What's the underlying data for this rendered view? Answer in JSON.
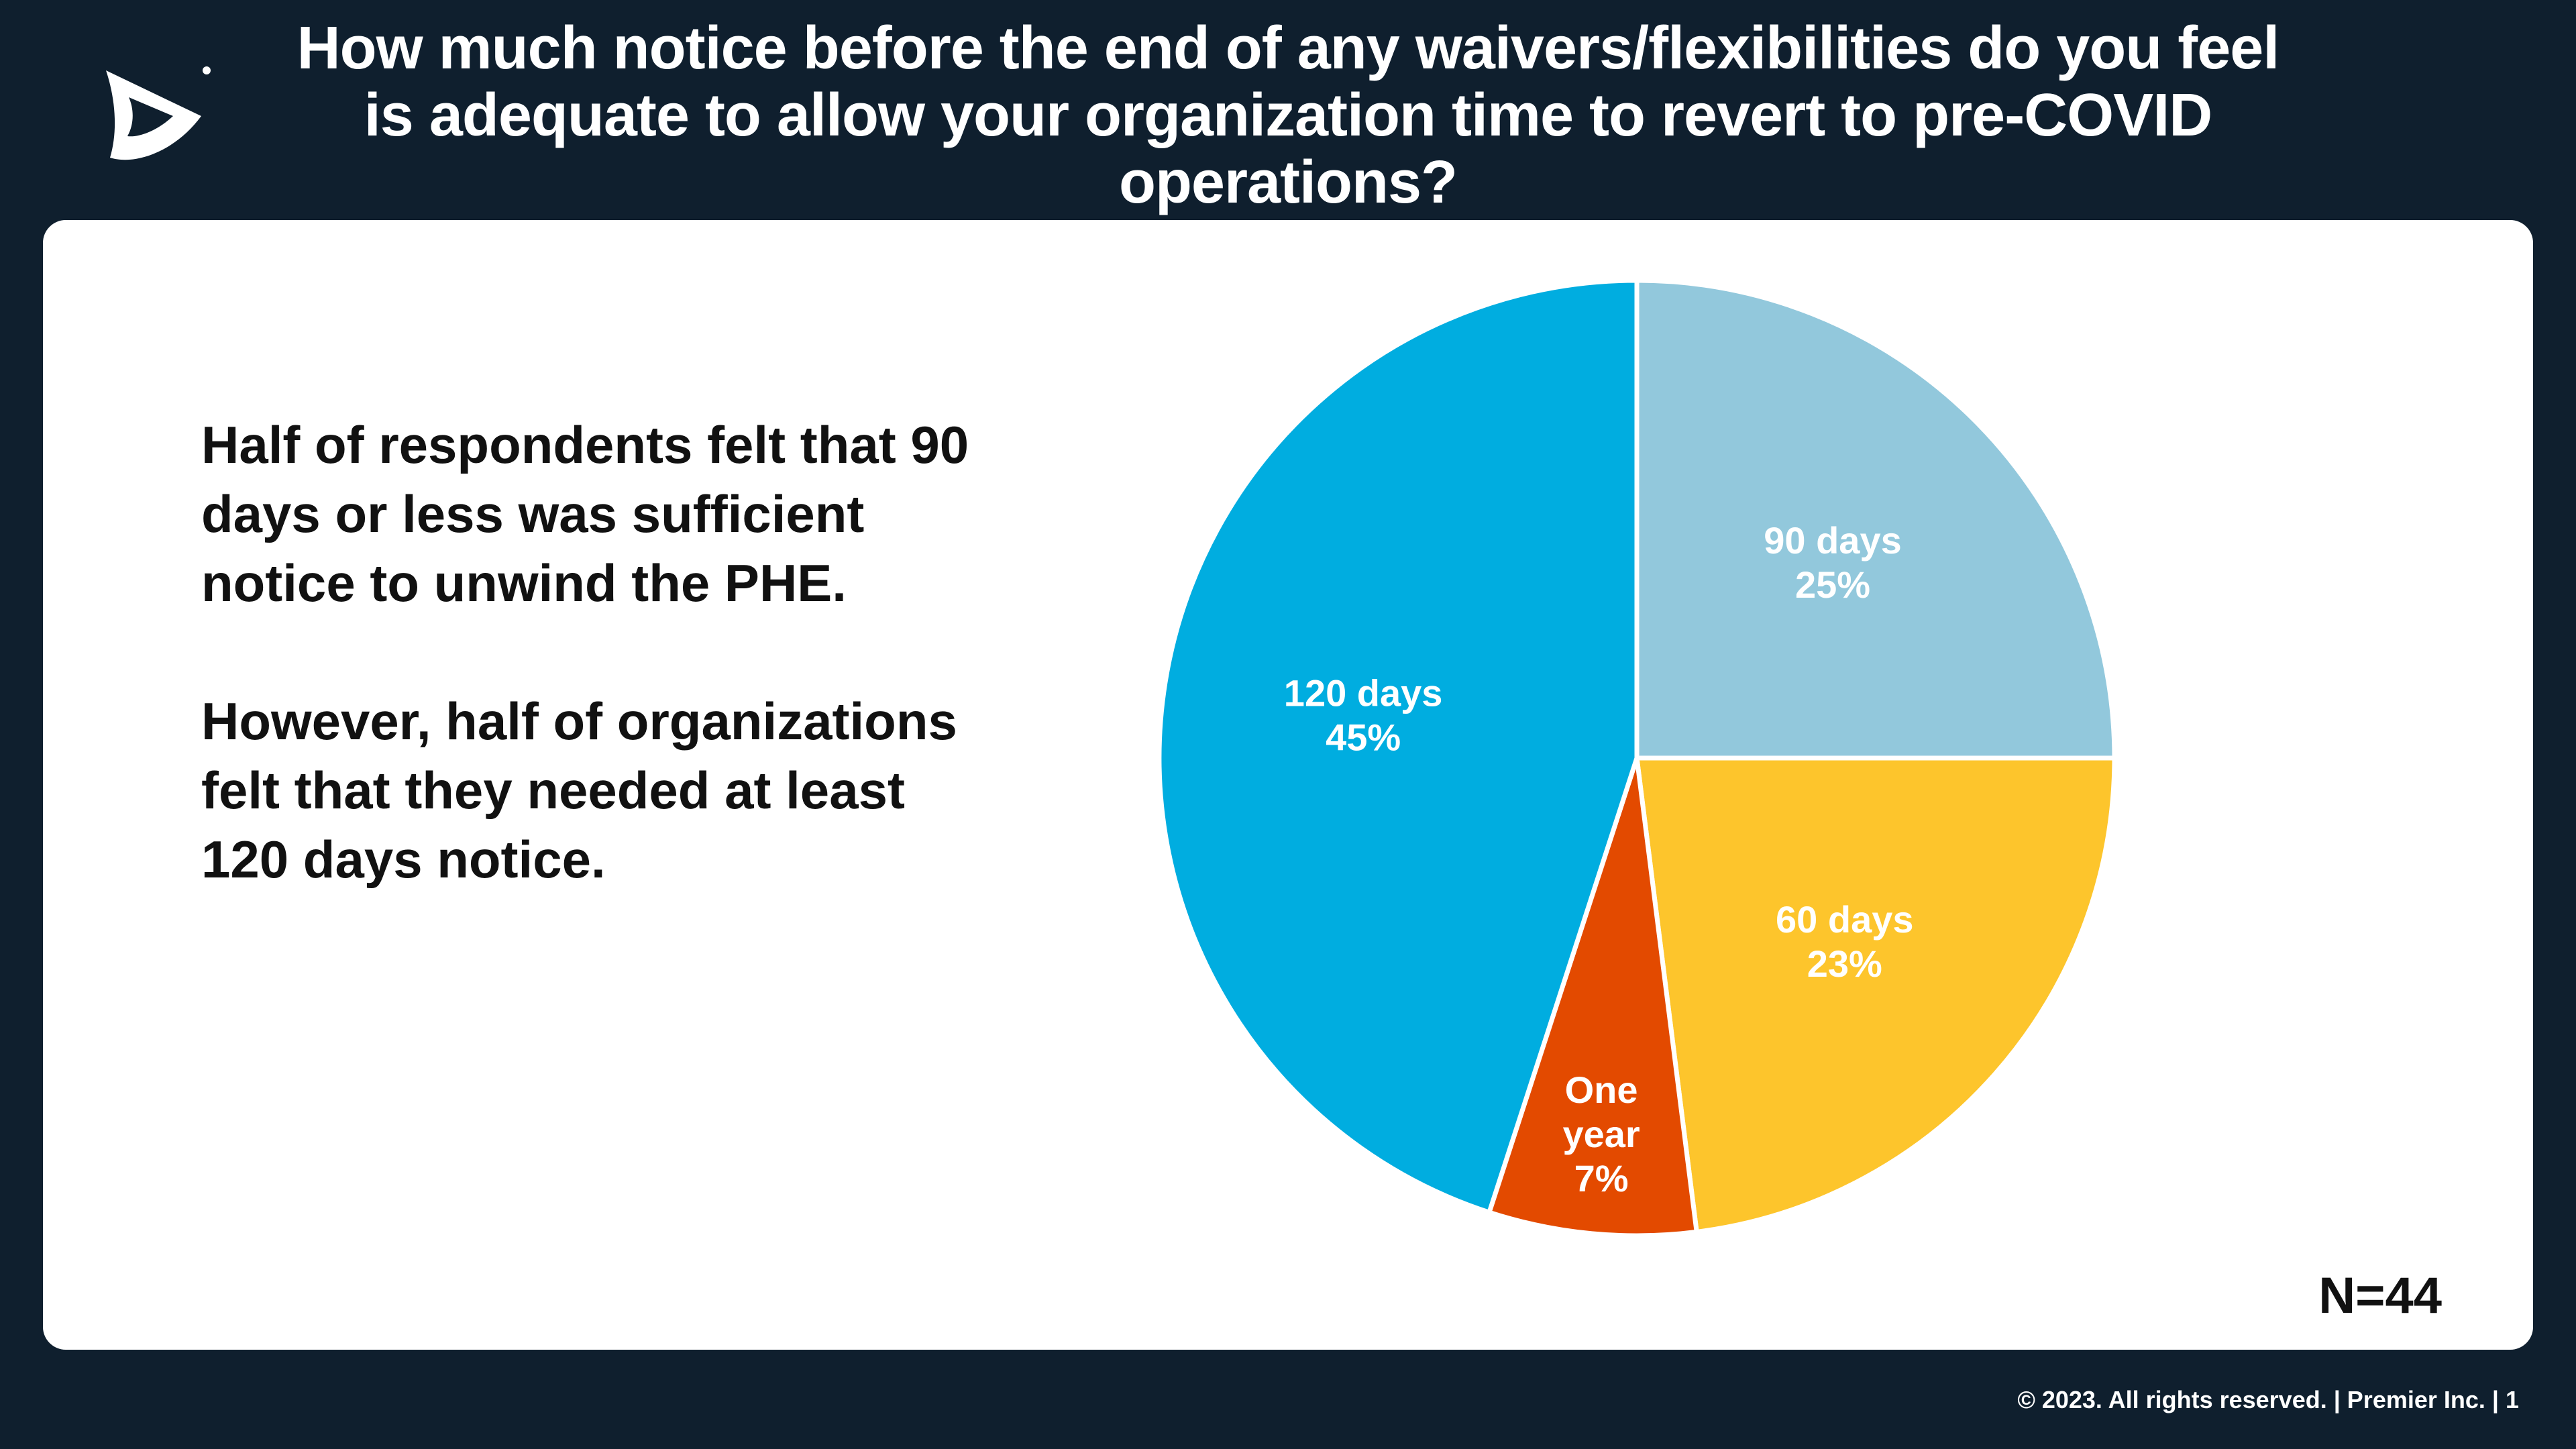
{
  "slide": {
    "title": "How much notice before the end of any waivers/flexibilities do you feel is adequate to allow your organization time to revert to pre-COVID operations?",
    "body": [
      "Half of respondents felt that 90 days or less was sufficient notice to unwind the PHE.",
      "However, half of organizations felt that they needed at least 120 days notice."
    ],
    "sample_size": "N=44",
    "footer": "© 2023. All rights reserved.  |  Premier Inc.  |  1",
    "logo_icon": "premier-logo-icon"
  },
  "colors": {
    "background": "#0f1f2e",
    "panel": "#ffffff"
  },
  "chart_data": {
    "type": "pie",
    "title": "How much notice before the end of any waivers/flexibilities do you feel is adequate to allow your organization time to revert to pre-COVID operations?",
    "start_angle_deg": 0,
    "direction": "clockwise",
    "slices": [
      {
        "label_lines": [
          "90 days"
        ],
        "percent_label": "25%",
        "value": 25,
        "color": "#92c8dc"
      },
      {
        "label_lines": [
          "60 days"
        ],
        "percent_label": "23%",
        "value": 23,
        "color": "#fdc52c"
      },
      {
        "label_lines": [
          "One",
          "year"
        ],
        "percent_label": "7%",
        "value": 7,
        "color": "#e34a00"
      },
      {
        "label_lines": [
          "120 days"
        ],
        "percent_label": "45%",
        "value": 45,
        "color": "#00ade0"
      }
    ],
    "legend": "none"
  }
}
